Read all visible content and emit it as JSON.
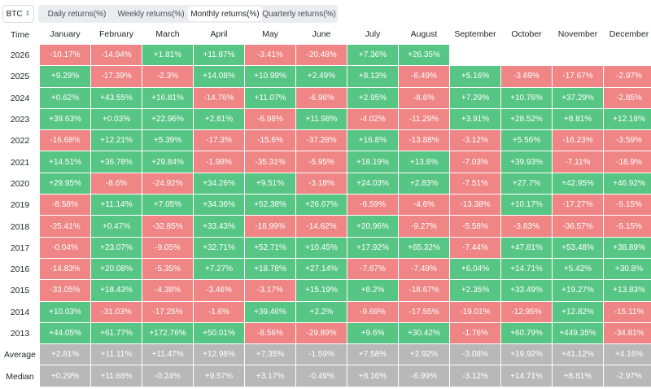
{
  "asset_selector": {
    "value": "BTC",
    "icon": "chevron-up-down-icon"
  },
  "tabs": [
    {
      "label": "Daily returns(%)",
      "active": false
    },
    {
      "label": "Weekly returns(%)",
      "active": false
    },
    {
      "label": "Monthly returns(%)",
      "active": true
    },
    {
      "label": "Quarterly returns(%)",
      "active": false
    }
  ],
  "colors": {
    "positive": "#57c584",
    "negative": "#f08585",
    "summary": "#b8b8b8"
  },
  "table": {
    "corner_label": "Time",
    "months": [
      "January",
      "February",
      "March",
      "April",
      "May",
      "June",
      "July",
      "August",
      "September",
      "October",
      "November",
      "December"
    ],
    "rows": [
      {
        "year": "2026",
        "values": [
          "-10.17%",
          "-14.94%",
          "+1.81%",
          "+11.87%",
          "-3.41%",
          "-20.48%",
          "+7.36%",
          "+26.35%",
          "",
          "",
          "",
          ""
        ]
      },
      {
        "year": "2025",
        "values": [
          "+9.29%",
          "-17.39%",
          "-2.3%",
          "+14.08%",
          "+10.99%",
          "+2.49%",
          "+8.13%",
          "-6.49%",
          "+5.16%",
          "-3.69%",
          "-17.67%",
          "-2.97%"
        ]
      },
      {
        "year": "2024",
        "values": [
          "+0.62%",
          "+43.55%",
          "+16.81%",
          "-14.76%",
          "+11.07%",
          "-6.96%",
          "+2.95%",
          "-8.6%",
          "+7.29%",
          "+10.76%",
          "+37.29%",
          "-2.85%"
        ]
      },
      {
        "year": "2023",
        "values": [
          "+39.63%",
          "+0.03%",
          "+22.96%",
          "+2.81%",
          "-6.98%",
          "+11.98%",
          "-4.02%",
          "-11.29%",
          "+3.91%",
          "+28.52%",
          "+8.81%",
          "+12.18%"
        ]
      },
      {
        "year": "2022",
        "values": [
          "-16.68%",
          "+12.21%",
          "+5.39%",
          "-17.3%",
          "-15.6%",
          "-37.28%",
          "+16.8%",
          "-13.88%",
          "-3.12%",
          "+5.56%",
          "-16.23%",
          "-3.59%"
        ]
      },
      {
        "year": "2021",
        "values": [
          "+14.51%",
          "+36.78%",
          "+29.84%",
          "-1.98%",
          "-35.31%",
          "-5.95%",
          "+18.19%",
          "+13.8%",
          "-7.03%",
          "+39.93%",
          "-7.11%",
          "-18.9%"
        ]
      },
      {
        "year": "2020",
        "values": [
          "+29.95%",
          "-8.6%",
          "-24.92%",
          "+34.26%",
          "+9.51%",
          "-3.18%",
          "+24.03%",
          "+2.83%",
          "-7.51%",
          "+27.7%",
          "+42.95%",
          "+46.92%"
        ]
      },
      {
        "year": "2019",
        "values": [
          "-8.58%",
          "+11.14%",
          "+7.05%",
          "+34.36%",
          "+52.38%",
          "+26.67%",
          "-6.59%",
          "-4.6%",
          "-13.38%",
          "+10.17%",
          "-17.27%",
          "-5.15%"
        ]
      },
      {
        "year": "2018",
        "values": [
          "-25.41%",
          "+0.47%",
          "-32.85%",
          "+33.43%",
          "-18.99%",
          "-14.62%",
          "+20.96%",
          "-9.27%",
          "-5.58%",
          "-3.83%",
          "-36.57%",
          "-5.15%"
        ]
      },
      {
        "year": "2017",
        "values": [
          "-0.04%",
          "+23.07%",
          "-9.05%",
          "+32.71%",
          "+52.71%",
          "+10.45%",
          "+17.92%",
          "+65.32%",
          "-7.44%",
          "+47.81%",
          "+53.48%",
          "+38.89%"
        ]
      },
      {
        "year": "2016",
        "values": [
          "-14.83%",
          "+20.08%",
          "-5.35%",
          "+7.27%",
          "+18.78%",
          "+27.14%",
          "-7.67%",
          "-7.49%",
          "+6.04%",
          "+14.71%",
          "+5.42%",
          "+30.8%"
        ]
      },
      {
        "year": "2015",
        "values": [
          "-33.05%",
          "+18.43%",
          "-4.38%",
          "-3.46%",
          "-3.17%",
          "+15.19%",
          "+8.2%",
          "-18.67%",
          "+2.35%",
          "+33.49%",
          "+19.27%",
          "+13.83%"
        ]
      },
      {
        "year": "2014",
        "values": [
          "+10.03%",
          "-31.03%",
          "-17.25%",
          "-1.6%",
          "+39.46%",
          "+2.2%",
          "-9.69%",
          "-17.55%",
          "-19.01%",
          "-12.95%",
          "+12.82%",
          "-15.11%"
        ]
      },
      {
        "year": "2013",
        "values": [
          "+44.05%",
          "+61.77%",
          "+172.76%",
          "+50.01%",
          "-8.56%",
          "-29.89%",
          "+9.6%",
          "+30.42%",
          "-1.76%",
          "+60.79%",
          "+449.35%",
          "-34.81%"
        ]
      }
    ],
    "summary_rows": [
      {
        "label": "Average",
        "values": [
          "+2.81%",
          "+11.11%",
          "+11.47%",
          "+12.98%",
          "+7.35%",
          "-1.59%",
          "+7.58%",
          "+2.92%",
          "-3.08%",
          "+19.92%",
          "+41.12%",
          "+4.16%"
        ]
      },
      {
        "label": "Median",
        "values": [
          "+0.29%",
          "+11.68%",
          "-0.24%",
          "+9.57%",
          "+3.17%",
          "-0.49%",
          "+8.16%",
          "-6.99%",
          "-3.12%",
          "+14.71%",
          "+8.81%",
          "-2.97%"
        ]
      }
    ]
  }
}
